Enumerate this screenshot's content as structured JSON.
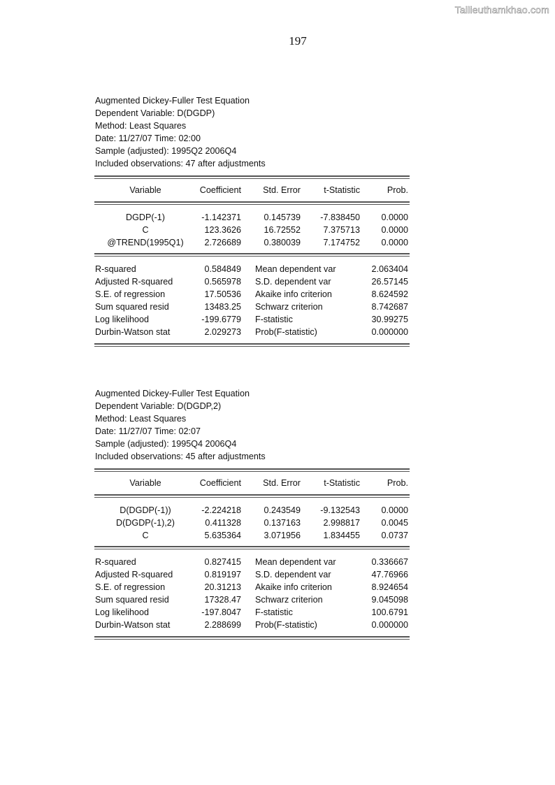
{
  "watermark": "Tailieuthamkhao.com",
  "page_number": "197",
  "columns": [
    "Variable",
    "Coefficient",
    "Std. Error",
    "t-Statistic",
    "Prob."
  ],
  "blocks": [
    {
      "header": [
        "Augmented Dickey-Fuller Test Equation",
        "Dependent Variable: D(DGDP)",
        "Method: Least Squares",
        "Date: 11/27/07   Time: 02:00",
        "Sample (adjusted): 1995Q2 2006Q4",
        "Included observations: 47 after adjustments"
      ],
      "coefficients": [
        [
          "DGDP(-1)",
          "-1.142371",
          "0.145739",
          "-7.838450",
          "0.0000"
        ],
        [
          "C",
          "123.3626",
          "16.72552",
          "7.375713",
          "0.0000"
        ],
        [
          "@TREND(1995Q1)",
          "2.726689",
          "0.380039",
          "7.174752",
          "0.0000"
        ]
      ],
      "stats": [
        [
          "R-squared",
          "0.584849",
          "Mean dependent var",
          "2.063404"
        ],
        [
          "Adjusted R-squared",
          "0.565978",
          "S.D. dependent var",
          "26.57145"
        ],
        [
          "S.E. of regression",
          "17.50536",
          "Akaike info criterion",
          "8.624592"
        ],
        [
          "Sum squared resid",
          "13483.25",
          "Schwarz criterion",
          "8.742687"
        ],
        [
          "Log likelihood",
          "-199.6779",
          "F-statistic",
          "30.99275"
        ],
        [
          "Durbin-Watson stat",
          "2.029273",
          "Prob(F-statistic)",
          "0.000000"
        ]
      ]
    },
    {
      "header": [
        "Augmented Dickey-Fuller Test Equation",
        "Dependent Variable: D(DGDP,2)",
        "Method: Least Squares",
        "Date: 11/27/07   Time: 02:07",
        "Sample (adjusted): 1995Q4 2006Q4",
        "Included observations: 45 after adjustments"
      ],
      "coefficients": [
        [
          "D(DGDP(-1))",
          "-2.224218",
          "0.243549",
          "-9.132543",
          "0.0000"
        ],
        [
          "D(DGDP(-1),2)",
          "0.411328",
          "0.137163",
          "2.998817",
          "0.0045"
        ],
        [
          "C",
          "5.635364",
          "3.071956",
          "1.834455",
          "0.0737"
        ]
      ],
      "stats": [
        [
          "R-squared",
          "0.827415",
          "Mean dependent var",
          "0.336667"
        ],
        [
          "Adjusted R-squared",
          "0.819197",
          "S.D. dependent var",
          "47.76966"
        ],
        [
          "S.E. of regression",
          "20.31213",
          "Akaike info criterion",
          "8.924654"
        ],
        [
          "Sum squared resid",
          "17328.47",
          "Schwarz criterion",
          "9.045098"
        ],
        [
          "Log likelihood",
          "-197.8047",
          "F-statistic",
          "100.6791"
        ],
        [
          "Durbin-Watson stat",
          "2.288699",
          "Prob(F-statistic)",
          "0.000000"
        ]
      ]
    }
  ]
}
